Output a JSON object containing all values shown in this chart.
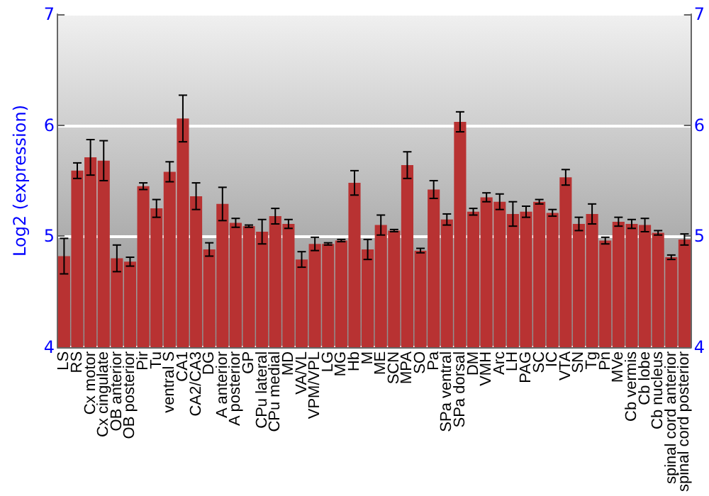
{
  "chart_data": {
    "type": "bar",
    "ylabel": "Log2 (expression)",
    "categories": [
      "LS",
      "RS",
      "Cx motor",
      "Cx cingulate",
      "OB anterior",
      "OB posterior",
      "Pir",
      "Tu",
      "ventral S",
      "CA1",
      "CA2/CA3",
      "DG",
      "A anterior",
      "A posterior",
      "GP",
      "CPu lateral",
      "CPu medial",
      "MD",
      "VA/VL",
      "VPM/VPL",
      "LG",
      "MG",
      "Hb",
      "M",
      "ME",
      "SCN",
      "MPA",
      "SO",
      "Pa",
      "SPa ventral",
      "SPa dorsal",
      "DM",
      "VMH",
      "Arc",
      "LH",
      "PAG",
      "SC",
      "IC",
      "VTA",
      "SN",
      "Tg",
      "Pn",
      "MVe",
      "Cb vermis",
      "Cb lobe",
      "Cb nucleus",
      "spinal cord anterior",
      "spinal cord posterior"
    ],
    "values": [
      4.82,
      5.59,
      5.71,
      5.68,
      4.8,
      4.77,
      5.45,
      5.25,
      5.58,
      6.06,
      5.36,
      4.88,
      5.29,
      5.12,
      5.09,
      5.04,
      5.18,
      5.11,
      4.79,
      4.93,
      4.93,
      4.96,
      5.48,
      4.88,
      5.1,
      5.05,
      5.64,
      4.87,
      5.42,
      5.15,
      6.03,
      5.22,
      5.35,
      5.31,
      5.2,
      5.22,
      5.31,
      5.21,
      5.53,
      5.11,
      5.2,
      4.96,
      5.13,
      5.11,
      5.1,
      5.03,
      4.81,
      4.97
    ],
    "errors": [
      0.16,
      0.07,
      0.16,
      0.18,
      0.12,
      0.04,
      0.03,
      0.08,
      0.09,
      0.21,
      0.12,
      0.06,
      0.15,
      0.04,
      0.01,
      0.11,
      0.07,
      0.04,
      0.07,
      0.06,
      0.01,
      0.01,
      0.11,
      0.09,
      0.09,
      0.01,
      0.12,
      0.02,
      0.08,
      0.05,
      0.09,
      0.03,
      0.04,
      0.07,
      0.11,
      0.05,
      0.02,
      0.03,
      0.07,
      0.06,
      0.09,
      0.03,
      0.04,
      0.04,
      0.06,
      0.02,
      0.02,
      0.05
    ],
    "color": "#b83232",
    "ylim": [
      4,
      7
    ],
    "yticks": [
      4,
      5,
      6,
      7
    ],
    "y2lim": [
      4,
      7
    ],
    "y2ticks": [
      4,
      5,
      6,
      7
    ],
    "grid": "y"
  }
}
